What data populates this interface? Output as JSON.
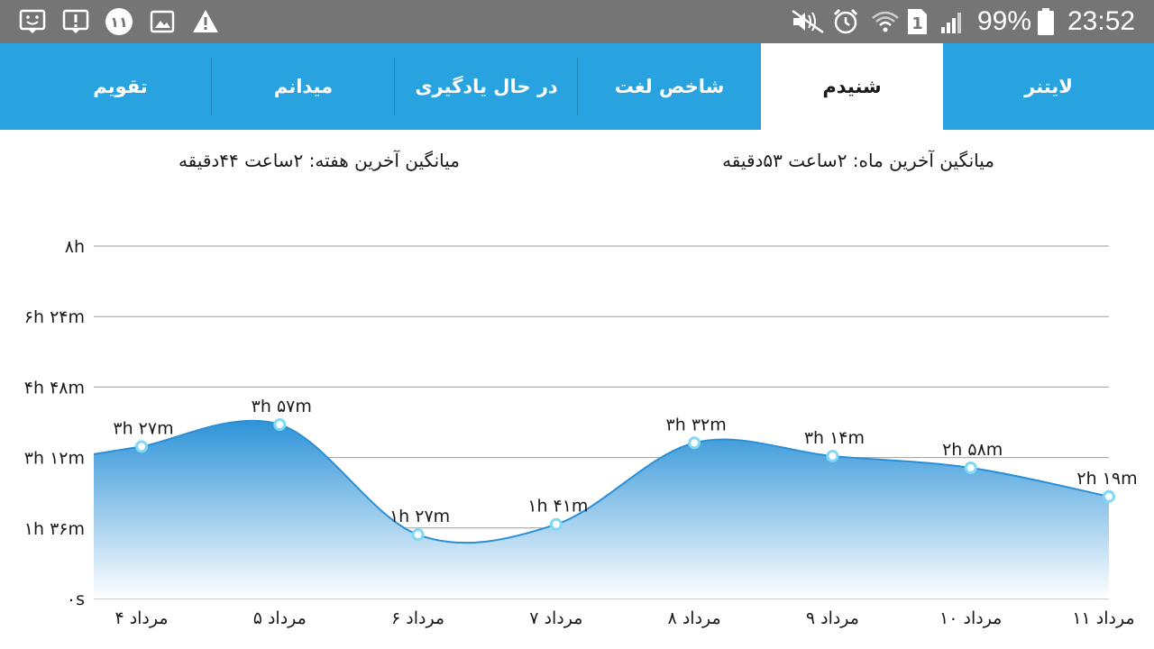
{
  "status_bar": {
    "battery": "99%",
    "time": "23:52",
    "notification_badge": "۱۱",
    "sim_slot": "1",
    "left_icons": [
      "smiley-message-icon",
      "alert-message-icon",
      "badge-11-icon",
      "image-icon",
      "warning-icon"
    ],
    "right_icons": [
      "mute-icon",
      "alarm-icon",
      "wifi-icon",
      "sim-1-icon",
      "signal-icon",
      "battery-icon"
    ]
  },
  "tabs": [
    {
      "label": "لایتنر",
      "active": false
    },
    {
      "label": "شنیدم",
      "active": true
    },
    {
      "label": "شاخص لغت",
      "active": false
    },
    {
      "label": "در حال یادگیری",
      "active": false
    },
    {
      "label": "میدانم",
      "active": false
    },
    {
      "label": "تقویم",
      "active": false
    }
  ],
  "averages": {
    "month": "میانگین آخرین ماه: ۲ساعت  ۵۳دقیقه",
    "week": "میانگین آخرین هفته: ۲ساعت  ۴۴دقیقه"
  },
  "colors": {
    "status_bar": "#757575",
    "tab_bar": "#29a3e0",
    "active_tab": "#ffffff",
    "series_line": "#2b8fd6",
    "area_top": "#2e93d8",
    "area_bottom": "#ffffff",
    "point_fill": "#ffffff",
    "point_stroke": "#7fd8f5",
    "grid": "#9e9e9e"
  },
  "chart_data": {
    "type": "area",
    "smooth": true,
    "y_unit": "minutes",
    "ylim": [
      0,
      480
    ],
    "y_ticks": [
      {
        "value": 0,
        "label": "۰s"
      },
      {
        "value": 96,
        "label": "۱h ۳۶m"
      },
      {
        "value": 192,
        "label": "۳h ۱۲m"
      },
      {
        "value": 288,
        "label": "۴h ۴۸m"
      },
      {
        "value": 384,
        "label": "۶h ۲۴m"
      },
      {
        "value": 480,
        "label": "۸h"
      }
    ],
    "grid": true,
    "categories": [
      "۴ مرداد",
      "۵ مرداد",
      "۶ مرداد",
      "۷ مرداد",
      "۸ مرداد",
      "۹ مرداد",
      "۱۰ مرداد",
      "۱۱ مرداد"
    ],
    "values": [
      207,
      237,
      87,
      101,
      212,
      194,
      178,
      139
    ],
    "data_labels": [
      "۳h ۲۷m",
      "۳h ۵۷m",
      "۱h ۲۷m",
      "۱h ۴۱m",
      "۳h ۳۲m",
      "۳h ۱۴m",
      "۲h ۵۸m",
      "۲h ۱۹m"
    ]
  }
}
